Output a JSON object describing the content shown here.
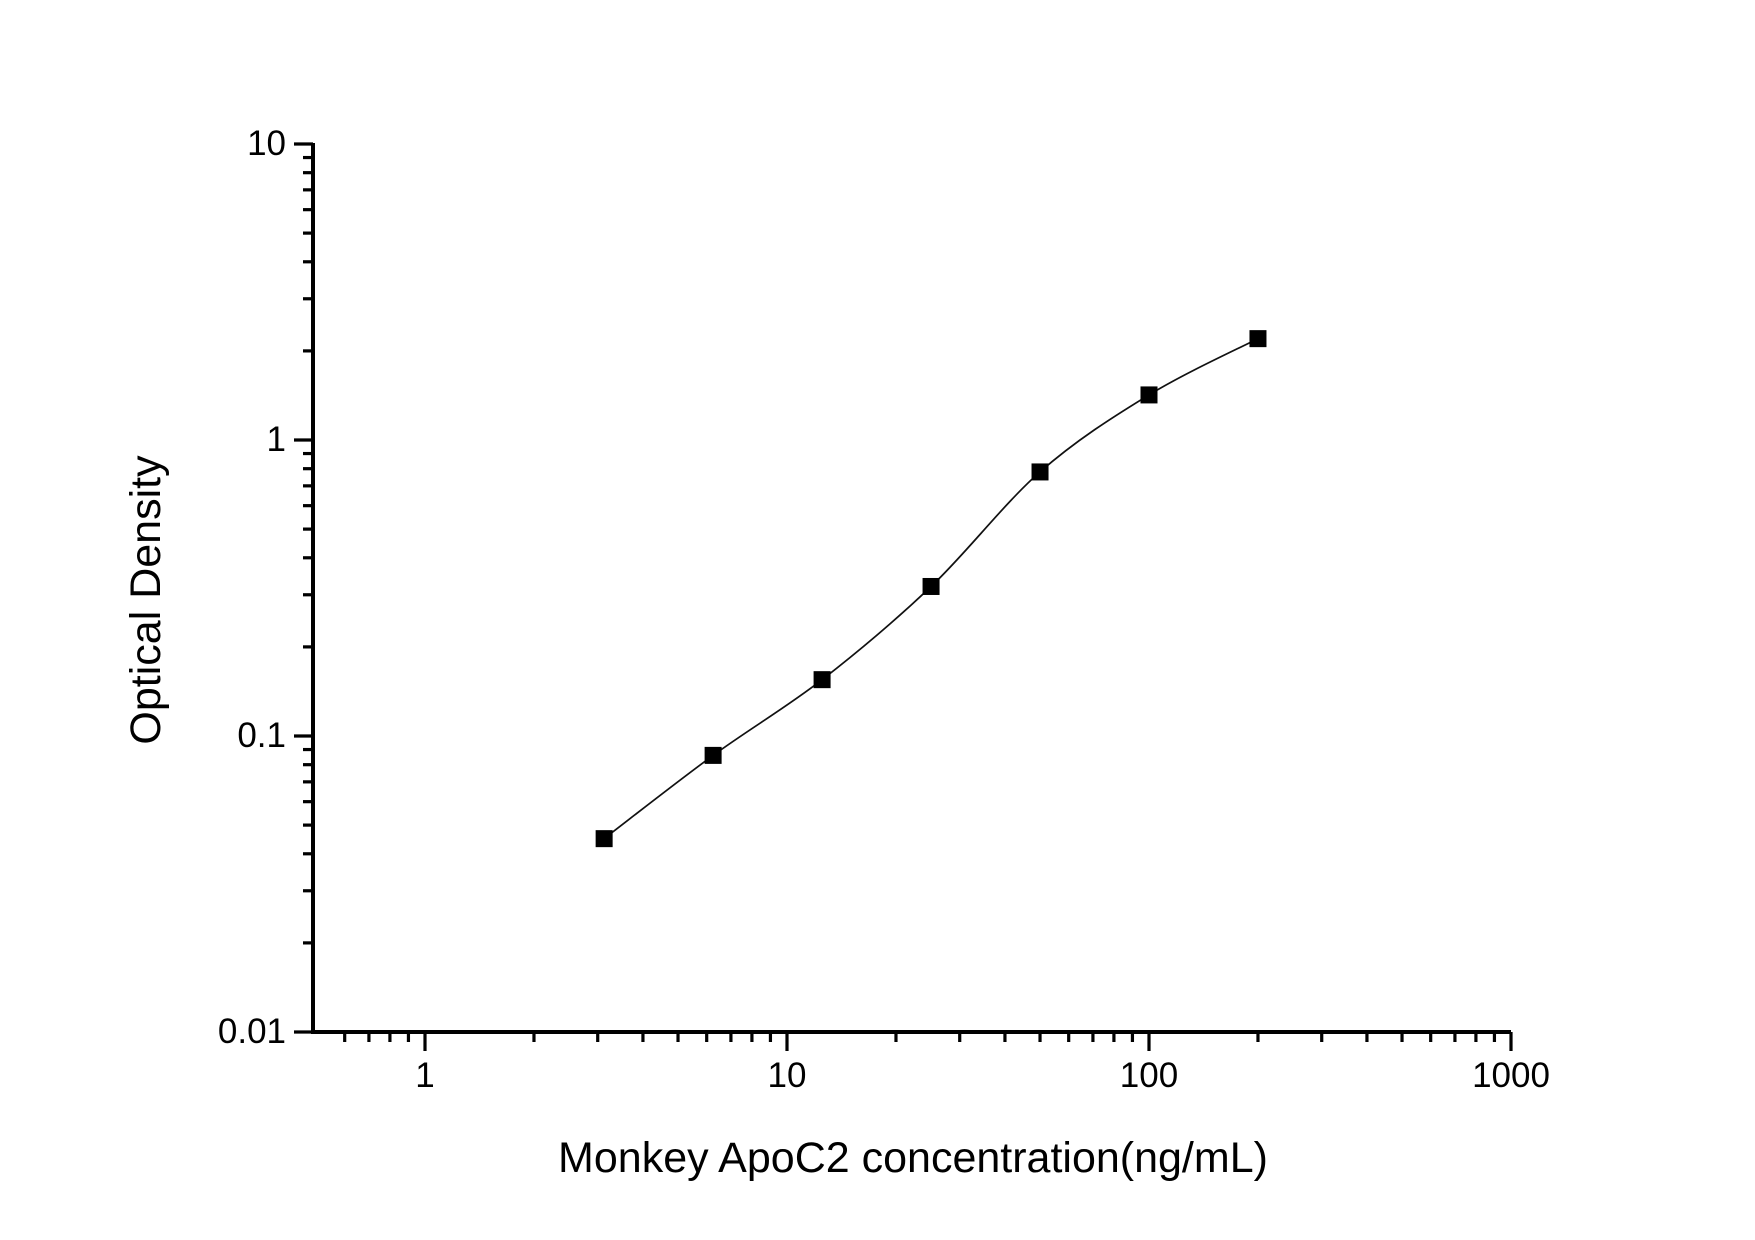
{
  "chart_data": {
    "type": "scatter",
    "title": "",
    "xlabel": "Monkey ApoC2 concentration(ng/mL)",
    "ylabel": "Optical Density",
    "x_scale": "log",
    "y_scale": "log",
    "xlim": [
      0.49,
      1000
    ],
    "ylim": [
      0.01,
      10
    ],
    "grid": false,
    "legend": null,
    "marker": "filled-square",
    "marker_color": "#000000",
    "line_color": "#111111",
    "axis_color": "#000000",
    "background_color": "#ffffff",
    "series": [
      {
        "x": [
          3.125,
          6.25,
          12.5,
          25,
          50,
          100,
          200
        ],
        "y": [
          0.045,
          0.086,
          0.155,
          0.32,
          0.78,
          1.42,
          2.2
        ]
      }
    ],
    "x_axis": {
      "major_ticks": [
        1,
        10,
        100,
        1000
      ],
      "major_tick_labels": [
        "1",
        "10",
        "100",
        "1000"
      ],
      "minor_ticks": [
        0.6,
        0.7,
        0.8,
        0.9,
        2,
        3,
        4,
        5,
        6,
        7,
        8,
        9,
        20,
        30,
        40,
        50,
        60,
        70,
        80,
        90,
        200,
        300,
        400,
        500,
        600,
        700,
        800,
        900
      ]
    },
    "y_axis": {
      "major_ticks": [
        0.01,
        0.1,
        1,
        10
      ],
      "major_tick_labels": [
        "0.01",
        "0.1",
        "1",
        "10"
      ],
      "minor_ticks": [
        0.02,
        0.03,
        0.04,
        0.05,
        0.06,
        0.07,
        0.08,
        0.09,
        0.2,
        0.3,
        0.4,
        0.5,
        0.6,
        0.7,
        0.8,
        0.9,
        2,
        3,
        4,
        5,
        6,
        7,
        8,
        9
      ]
    }
  }
}
